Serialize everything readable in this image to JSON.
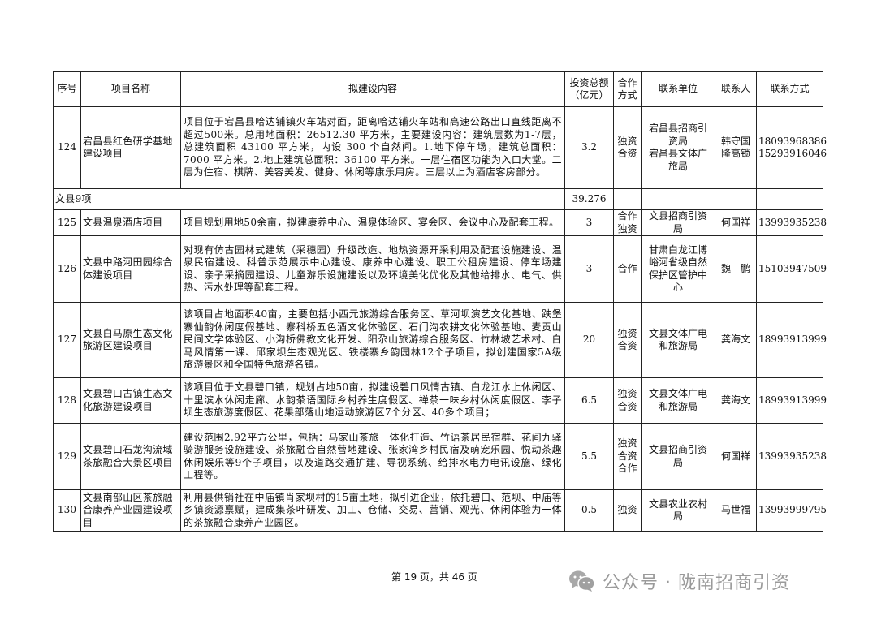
{
  "header": [
    "序号",
    "项目名称",
    "拟建设内容",
    "投资总额\n（亿元）",
    "合作\n方式",
    "联系单位",
    "联系人",
    "联系方式"
  ],
  "rows": [
    {
      "no": "124",
      "name": "宕昌县红色研学基地建设项目",
      "content": "项目位于宕昌县哈达铺镇火车站对面，距离哈达铺火车站和高速公路出口直线距离不超过500米。总用地面积：26512.30 平方米，主要建设内容：建筑层数为1-7层，总建筑面积 43100 平方米，内设 300 个自然间。1.地下停车场，建筑总面积：7000 平方米。2.地上建筑总面积：36100 平方米。一层住宿区功能为入口大堂。二层为住宿、棋牌、美容美发、健身、休闲等康乐用房。三层以上为酒店客房部分。",
      "investment": "3.2",
      "coop": "独资\n合资",
      "unit": "宕昌县招商引\n资局\n宕昌县文体广\n旅局",
      "person": "韩守国\n隆高锁",
      "phone": "18093968386\n15293916046"
    },
    {
      "section": "文县9项",
      "investment": "39.276"
    },
    {
      "no": "125",
      "name": "文县温泉酒店项目",
      "content": "项目规划用地50余亩，拟建康养中心、温泉体验区、宴会区、会议中心及配套工程。",
      "investment": "3",
      "coop": "合作\n独资",
      "unit": "文县招商引资\n局",
      "person": "何国祥",
      "phone": "13993935238"
    },
    {
      "no": "126",
      "name": "文县中路河田园综合体建设项目",
      "content": "对现有仿古园林式建筑（采穗园）升级改造、地热资源开采利用及配套设施建设、温泉民宿建设、科普示范展示中心建设、康养中心建设、职工公租房建设、停车场建设、亲子采摘园建设、儿童游乐设施建设以及环境美化优化及其他给排水、电气、供热、污水处理等配套工程。",
      "investment": "3",
      "coop": "合作",
      "unit": "甘肃白龙江博\n峪河省级自然\n保护区管护中\n心",
      "person": "魏　鹏",
      "phone": "15103947509"
    },
    {
      "no": "127",
      "name": "文县白马原生态文化旅游区建设项目",
      "content": "该项目占地面积40亩，主要包括小西元旅游综合服务区、草河坝演艺文化基地、跌堡寨仙韵休闲度假基地、寨科桥五色酒文化体验区、石门沟农耕文化体验基地、麦贡山民间文学体验区、小沟桥佛教文化开发、阳尕山旅游综合服务区、竹林坡艺术村、白马风情第一课、邱家坝生态观光区、铁楼寨乡韵园林12个子项目，拟创建国家5A级旅游景区和全国特色旅游名镇。",
      "investment": "20",
      "coop": "独资\n合资",
      "unit": "文县文体广电\n和旅游局",
      "person": "龚海文",
      "phone": "18993913999"
    },
    {
      "no": "128",
      "name": "文县碧口古镇生态文化旅游建设项目",
      "content": "该项目位于文县碧口镇，规划占地50亩，拟建设碧口风情古镇、白龙江水上休闲区、十里滨水休闲走廊、水韵茶语国际乡村养生度假区、禅茶一味乡村休闲度假区、李子坝生态旅游度假区、花果部落山地运动旅游区7个分区、40多个项目；",
      "investment": "6.5",
      "coop": "独资\n合资",
      "unit": "文县文体广电\n和旅游局",
      "person": "龚海文",
      "phone": "18993913999"
    },
    {
      "no": "129",
      "name": "文县碧口石龙沟流域茶旅融合大景区项目",
      "content": "建设范围2.92平方公里，包括：马家山茶旅一体化打造、竹语茶居民宿群、花间九驿骑游服务设施建设、茶旅融合自然营地建设、张家湾乡村民宿及萌宠乐园、悦动茶趣休闲娱乐等9个子项目，以及道路交通扩建、导视系统、给排水电力电讯设施、绿化工程等。",
      "investment": "5.5",
      "coop": "独资\n合资\n合作",
      "unit": "文县招商引资\n局",
      "person": "何国祥",
      "phone": "13993935238"
    },
    {
      "no": "130",
      "name": "文县南部山区茶旅融合康养产业园建设项目",
      "content": "利用县供销社在中庙镇肖家坝村的15亩土地，拟引进企业，依托碧口、范坝、中庙等乡镇资源禀赋，建成集茶叶研发、加工、仓储、交易、营销、观光、休闲体验为一体的茶旅融合康养产业园区。",
      "investment": "0.5",
      "coop": "独资",
      "unit": "文县农业农村\n局",
      "person": "马世福",
      "phone": "13993999795"
    }
  ],
  "footer": {
    "page_text": "第 19 页，共 46 页"
  },
  "watermark": {
    "text": "公众号 · 陇南招商引资",
    "icon": "wechat-icon"
  }
}
